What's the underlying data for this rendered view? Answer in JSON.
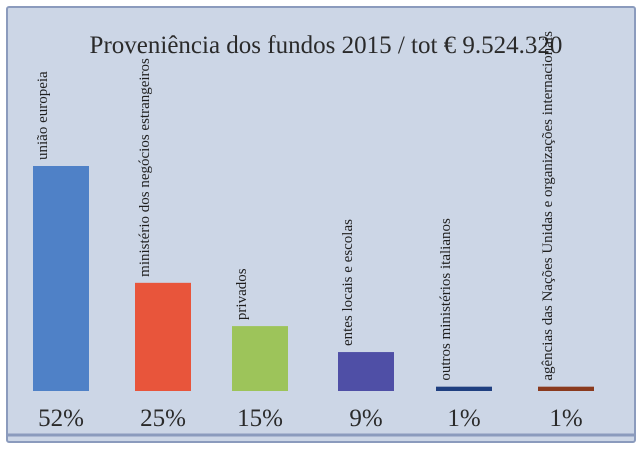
{
  "chart_data": {
    "type": "bar",
    "title": "Proveniência dos fundos 2015 / tot € 9.524.320",
    "categories": [
      "união europeia",
      "ministério dos negócios estrangeiros",
      "privados",
      "entes locais e escolas",
      "outros ministérios italianos",
      "agências das Nações Unidas e organizações internacionais"
    ],
    "values": [
      52,
      25,
      15,
      9,
      1,
      1
    ],
    "value_labels": [
      "52%",
      "25%",
      "15%",
      "9%",
      "1%",
      "1%"
    ],
    "unit": "%",
    "ylim": [
      0,
      52
    ],
    "colors": [
      "#4f81c7",
      "#e8553b",
      "#9dc45a",
      "#4f4fa6",
      "#1f3f80",
      "#8a3a1e"
    ],
    "xlabel": "",
    "ylabel": "",
    "grid": false,
    "legend": "none"
  }
}
